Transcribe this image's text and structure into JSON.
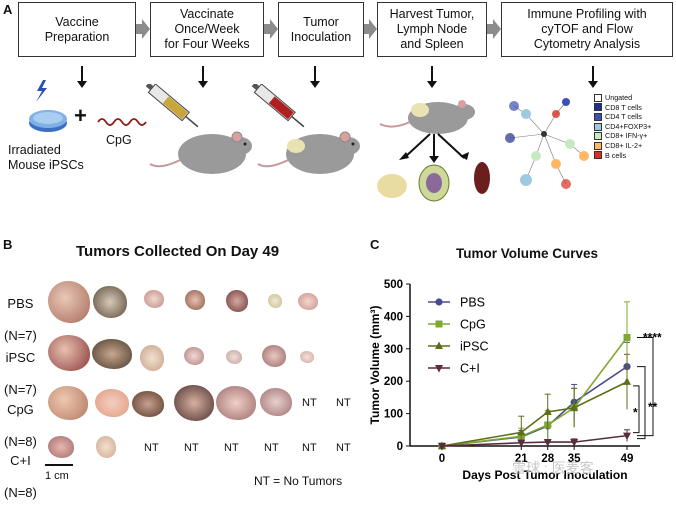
{
  "panel_a": {
    "letter": "A",
    "steps": [
      "Vaccine\nPreparation",
      "Vaccinate\nOnce/Week\nfor Four Weeks",
      "Tumor\nInoculation",
      "Harvest Tumor,\nLymph Node\nand Spleen",
      "Immune Profiling with\ncyTOF and Flow\nCytometry Analysis"
    ],
    "ipsc_label": "Irradiated\nMouse iPSCs",
    "plus": "+",
    "cpg_label": "CpG",
    "legend": [
      {
        "label": "Ungated",
        "color": "#ffffff"
      },
      {
        "label": "CD8 T cells",
        "color": "#1f2f8c"
      },
      {
        "label": "CD4 T cells",
        "color": "#3b4fb5"
      },
      {
        "label": "CD4+FOXP3+",
        "color": "#9ecae1"
      },
      {
        "label": "CD8+ IFN-γ+",
        "color": "#c7e9c0"
      },
      {
        "label": "CD8+ IL-2+",
        "color": "#fdb863"
      },
      {
        "label": "B cells",
        "color": "#d7301f"
      }
    ]
  },
  "panel_b": {
    "letter": "B",
    "title": "Tumors Collected On Day 49",
    "groups": [
      {
        "name": "PBS",
        "n": "(N=7)",
        "tumors": 7,
        "nt": 0
      },
      {
        "name": "iPSC",
        "n": "(N=7)",
        "tumors": 7,
        "nt": 0
      },
      {
        "name": "CpG",
        "n": "(N=8)",
        "tumors": 6,
        "nt": 2
      },
      {
        "name": "C+I",
        "n": "(N=8)",
        "tumors": 2,
        "nt": 6
      }
    ],
    "nt_text": "NT",
    "scale_label": "1 cm",
    "footnote": "NT = No Tumors"
  },
  "chart_data": {
    "type": "line",
    "letter": "C",
    "title": "Tumor Volume Curves",
    "xlabel": "Days Post Tumor Inoculation",
    "ylabel": "Tumor Volume (mm³)",
    "x": [
      0,
      21,
      28,
      35,
      49
    ],
    "xticks": [
      "0",
      "21",
      "28",
      "35",
      "49"
    ],
    "yticks": [
      0,
      100,
      200,
      300,
      400,
      500
    ],
    "ylim": [
      0,
      500
    ],
    "series": [
      {
        "name": "PBS",
        "color": "#4a4a8c",
        "marker": "circle",
        "values": [
          0,
          28,
          62,
          135,
          245
        ],
        "err": [
          0,
          20,
          40,
          55,
          75
        ]
      },
      {
        "name": "CpG",
        "color": "#7fa832",
        "marker": "square",
        "values": [
          0,
          30,
          65,
          118,
          335
        ],
        "err": [
          0,
          25,
          45,
          60,
          110
        ]
      },
      {
        "name": "iPSC",
        "color": "#5c6e1a",
        "marker": "triangle",
        "values": [
          0,
          42,
          105,
          118,
          198
        ],
        "err": [
          0,
          50,
          55,
          60,
          85
        ]
      },
      {
        "name": "C+I",
        "color": "#5a2d3c",
        "marker": "tri-down",
        "values": [
          0,
          10,
          12,
          12,
          32
        ],
        "err": [
          0,
          8,
          8,
          10,
          18
        ]
      }
    ],
    "significance": [
      "****",
      "*",
      "**"
    ]
  },
  "watermark": "雪球 : 医麦客"
}
